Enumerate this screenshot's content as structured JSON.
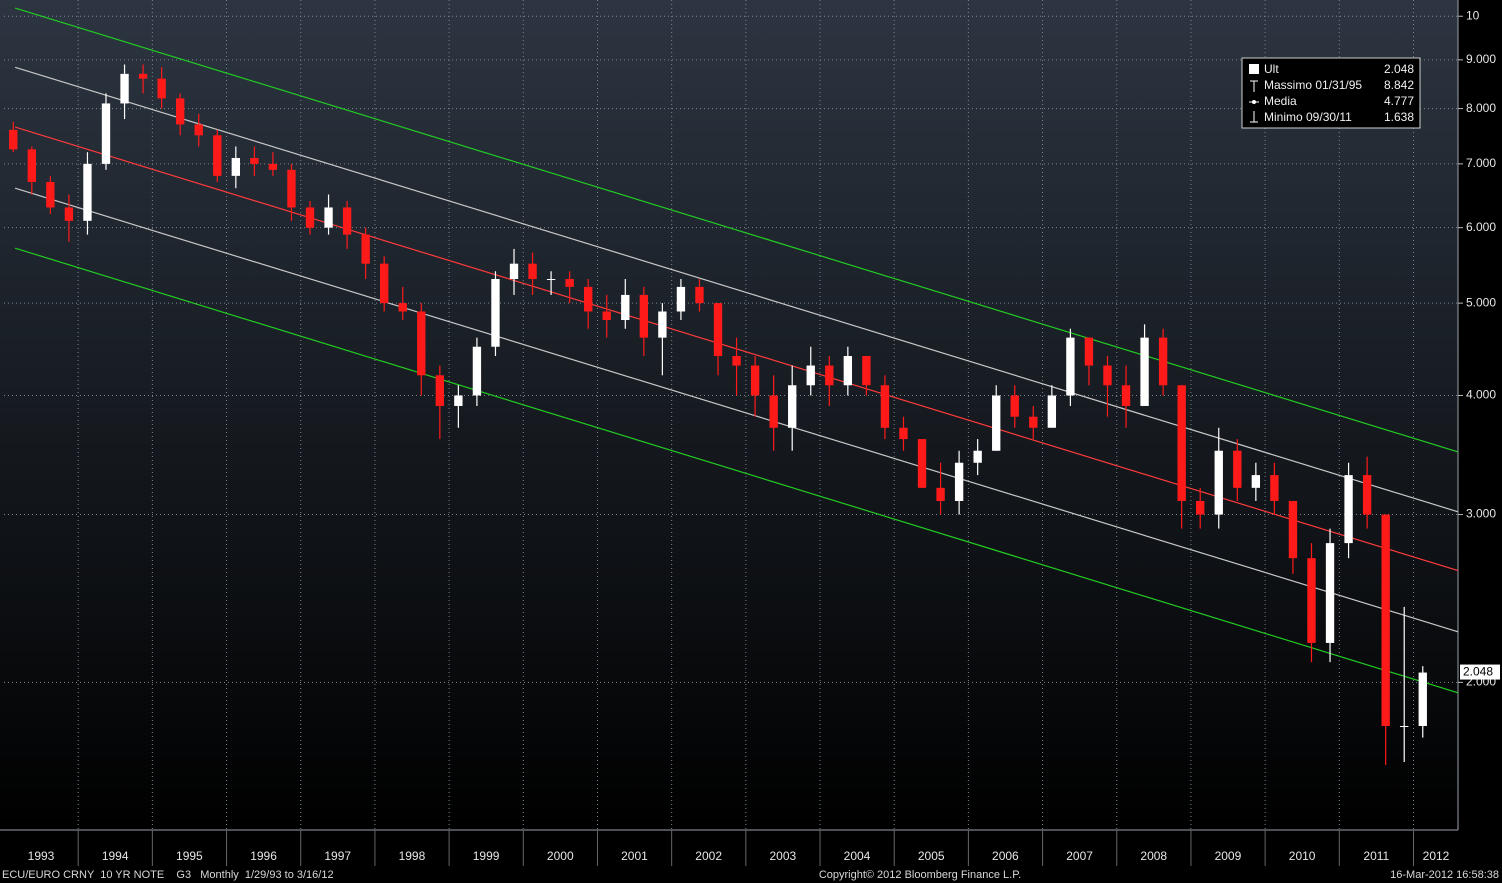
{
  "chart_data": {
    "type": "candlestick",
    "log_scale": true,
    "grid": true,
    "up_color": "#ffffff",
    "down_color": "#ff1a1a",
    "xlim": [
      1993,
      2012.6
    ],
    "ylim": [
      1.4,
      10.4
    ],
    "yticks": [
      10,
      {
        "value": 9,
        "label": "9.000"
      },
      {
        "value": 8,
        "label": "8.000"
      },
      {
        "value": 7,
        "label": "7.000"
      },
      {
        "value": 6,
        "label": "6.000"
      },
      {
        "value": 5,
        "label": "5.000"
      },
      {
        "value": 4,
        "label": "4.000"
      },
      {
        "value": 3,
        "label": "3.000"
      },
      {
        "value": 2,
        "label": "2.000"
      }
    ],
    "xticks": [
      1993,
      1994,
      1995,
      1996,
      1997,
      1998,
      1999,
      2000,
      2001,
      2002,
      2003,
      2004,
      2005,
      2006,
      2007,
      2008,
      2009,
      2010,
      2011,
      2012
    ],
    "x": [
      1993.125,
      1993.375,
      1993.625,
      1993.875,
      1994.125,
      1994.375,
      1994.625,
      1994.875,
      1995.125,
      1995.375,
      1995.625,
      1995.875,
      1996.125,
      1996.375,
      1996.625,
      1996.875,
      1997.125,
      1997.375,
      1997.625,
      1997.875,
      1998.125,
      1998.375,
      1998.625,
      1998.875,
      1999.125,
      1999.375,
      1999.625,
      1999.875,
      2000.125,
      2000.375,
      2000.625,
      2000.875,
      2001.125,
      2001.375,
      2001.625,
      2001.875,
      2002.125,
      2002.375,
      2002.625,
      2002.875,
      2003.125,
      2003.375,
      2003.625,
      2003.875,
      2004.125,
      2004.375,
      2004.625,
      2004.875,
      2005.125,
      2005.375,
      2005.625,
      2005.875,
      2006.125,
      2006.375,
      2006.625,
      2006.875,
      2007.125,
      2007.375,
      2007.625,
      2007.875,
      2008.125,
      2008.375,
      2008.625,
      2008.875,
      2009.125,
      2009.375,
      2009.625,
      2009.875,
      2010.125,
      2010.375,
      2010.625,
      2010.875,
      2011.125,
      2011.375,
      2011.625,
      2011.875,
      2012.125
    ],
    "open": [
      7.6,
      7.25,
      6.7,
      6.3,
      6.1,
      7.0,
      8.1,
      8.7,
      8.6,
      8.2,
      7.7,
      7.5,
      6.8,
      7.1,
      7.0,
      6.9,
      6.3,
      6.0,
      6.3,
      5.9,
      5.5,
      5.0,
      4.9,
      4.2,
      3.9,
      4.0,
      4.5,
      5.3,
      5.5,
      5.3,
      5.3,
      5.2,
      4.9,
      4.8,
      5.1,
      4.6,
      4.9,
      5.2,
      5.0,
      4.4,
      4.3,
      4.0,
      3.7,
      4.1,
      4.3,
      4.1,
      4.4,
      4.1,
      3.7,
      3.6,
      3.2,
      3.1,
      3.4,
      3.5,
      4.0,
      3.8,
      3.7,
      4.0,
      4.6,
      4.3,
      4.1,
      3.9,
      4.6,
      4.1,
      3.1,
      3.0,
      3.5,
      3.2,
      3.3,
      3.1,
      2.7,
      2.2,
      2.8,
      3.3,
      3.0,
      1.8,
      1.8
    ],
    "high": [
      7.75,
      7.3,
      6.8,
      6.5,
      7.2,
      8.3,
      8.9,
      8.9,
      8.842,
      8.3,
      7.9,
      7.6,
      7.3,
      7.3,
      7.2,
      7.0,
      6.4,
      6.5,
      6.4,
      6.0,
      5.6,
      5.2,
      5.0,
      4.3,
      4.1,
      4.6,
      5.4,
      5.7,
      5.65,
      5.4,
      5.4,
      5.3,
      5.1,
      5.3,
      5.2,
      5.0,
      5.3,
      5.3,
      5.0,
      4.6,
      4.4,
      4.2,
      4.3,
      4.5,
      4.4,
      4.5,
      4.4,
      4.2,
      3.8,
      3.6,
      3.4,
      3.5,
      3.6,
      4.1,
      4.1,
      3.9,
      4.1,
      4.7,
      4.6,
      4.4,
      4.3,
      4.75,
      4.7,
      4.1,
      3.2,
      3.7,
      3.6,
      3.4,
      3.4,
      3.1,
      2.8,
      2.9,
      3.4,
      3.45,
      3.0,
      2.4,
      2.08
    ],
    "low": [
      7.2,
      6.5,
      6.2,
      5.8,
      5.9,
      6.9,
      7.8,
      8.3,
      8.0,
      7.5,
      7.3,
      6.7,
      6.6,
      6.8,
      6.8,
      6.1,
      5.9,
      5.9,
      5.7,
      5.3,
      4.9,
      4.8,
      4.0,
      3.6,
      3.7,
      3.9,
      4.4,
      5.1,
      5.1,
      5.1,
      5.0,
      4.7,
      4.6,
      4.7,
      4.4,
      4.2,
      4.8,
      4.9,
      4.2,
      4.0,
      3.8,
      3.5,
      3.5,
      4.0,
      3.9,
      4.0,
      4.0,
      3.6,
      3.5,
      3.2,
      3.0,
      3.0,
      3.3,
      3.5,
      3.7,
      3.6,
      3.7,
      3.9,
      4.1,
      3.8,
      3.7,
      3.9,
      4.0,
      2.9,
      2.9,
      2.9,
      3.1,
      3.1,
      3.0,
      2.6,
      2.1,
      2.1,
      2.7,
      2.9,
      1.638,
      1.65,
      1.75
    ],
    "close": [
      7.25,
      6.7,
      6.3,
      6.1,
      7.0,
      8.1,
      8.7,
      8.6,
      8.2,
      7.7,
      7.5,
      6.8,
      7.1,
      7.0,
      6.9,
      6.3,
      6.0,
      6.3,
      5.9,
      5.5,
      5.0,
      4.9,
      4.2,
      3.9,
      4.0,
      4.5,
      5.3,
      5.5,
      5.3,
      5.3,
      5.2,
      4.9,
      4.8,
      5.1,
      4.6,
      4.9,
      5.2,
      5.0,
      4.4,
      4.3,
      4.0,
      3.7,
      4.1,
      4.3,
      4.1,
      4.4,
      4.1,
      3.7,
      3.6,
      3.2,
      3.1,
      3.4,
      3.5,
      4.0,
      3.8,
      3.7,
      4.0,
      4.6,
      4.3,
      4.1,
      3.9,
      4.6,
      4.1,
      3.1,
      3.0,
      3.5,
      3.2,
      3.3,
      3.1,
      2.7,
      2.2,
      2.8,
      3.3,
      3.0,
      1.8,
      1.8,
      2.048
    ],
    "lines": [
      {
        "color": "#22cc22",
        "x": [
          1993.15,
          2012.6
        ],
        "values": [
          10.2,
          3.49
        ]
      },
      {
        "color": "#c8c8c8",
        "x": [
          1993.15,
          2012.6
        ],
        "values": [
          8.84,
          3.02
        ]
      },
      {
        "color": "#ff3b3b",
        "x": [
          1993.15,
          2012.6
        ],
        "values": [
          7.65,
          2.62
        ]
      },
      {
        "color": "#c8c8c8",
        "x": [
          1993.15,
          2012.6
        ],
        "values": [
          6.6,
          2.26
        ]
      },
      {
        "color": "#22cc22",
        "x": [
          1993.15,
          2012.6
        ],
        "values": [
          5.71,
          1.95
        ]
      }
    ],
    "legend": [
      {
        "label": "Ult",
        "value": 2.048
      },
      {
        "label": "Massimo 01/31/95",
        "value": 8.842
      },
      {
        "label": "Media",
        "value": 4.777
      },
      {
        "label": "Minimo 09/30/11",
        "value": 1.638
      }
    ],
    "footer": {
      "left": "ECU/EURO CRNY  10 YR NOTE    G3   Monthly  1/29/93 to 3/16/12",
      "center": "Copyright© 2012 Bloomberg Finance L.P.",
      "right": "16-Mar-2012 16:58:38"
    }
  }
}
